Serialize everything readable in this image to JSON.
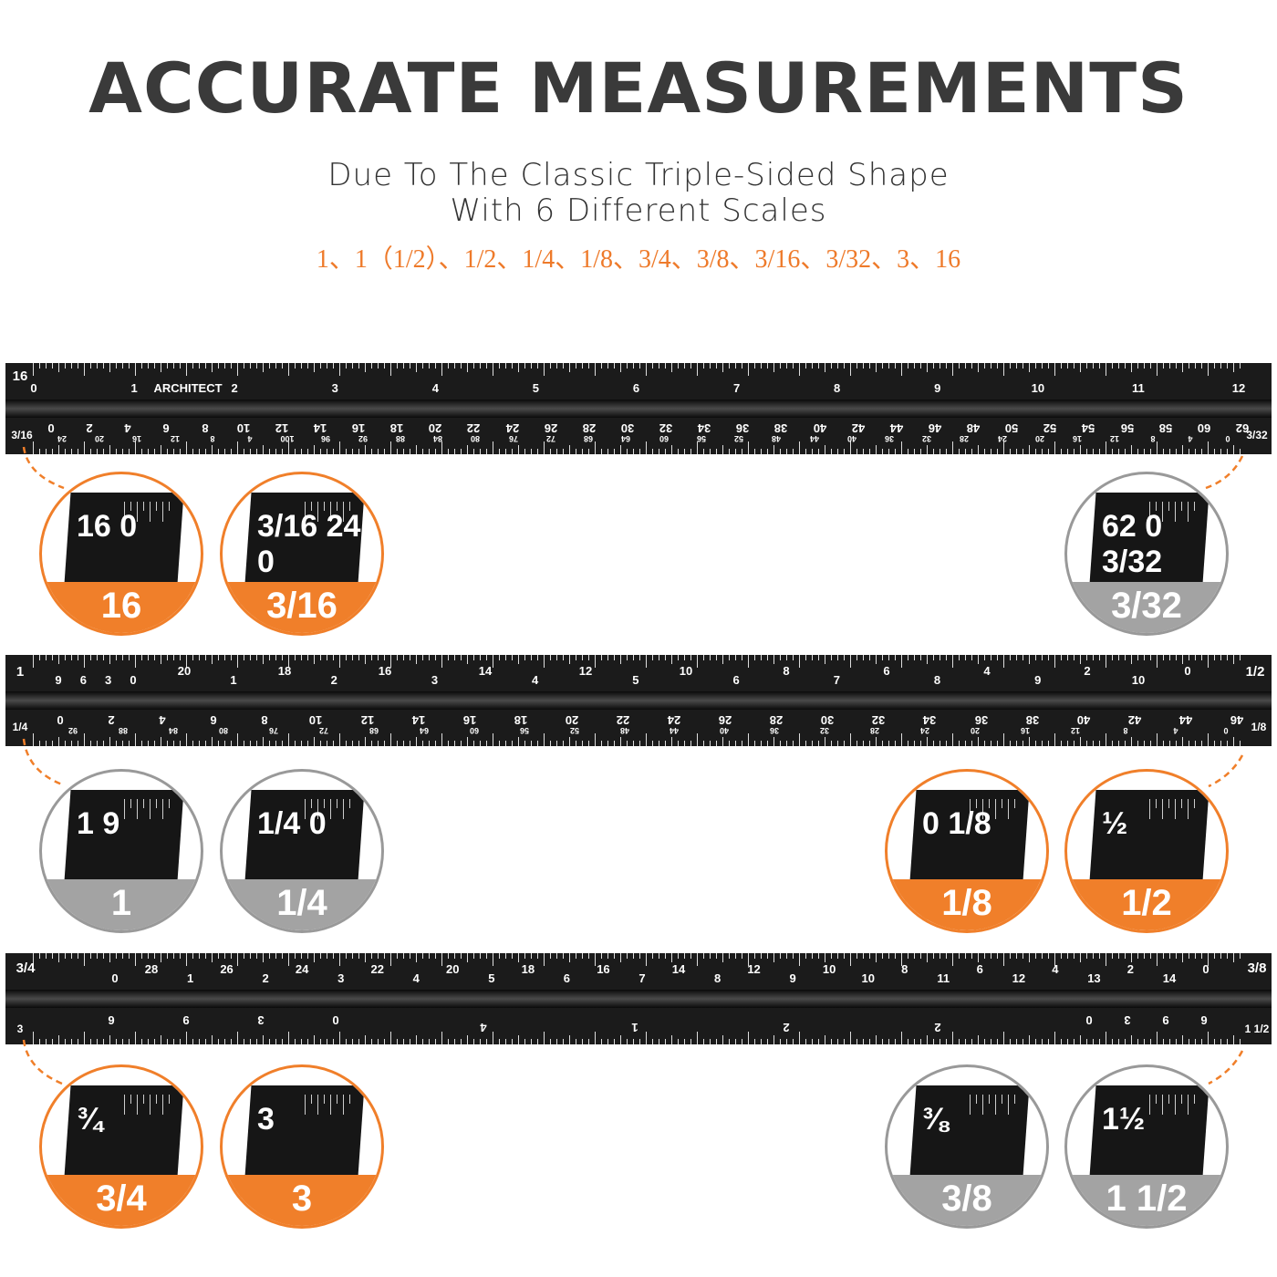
{
  "title": "ACCURATE MEASUREMENTS",
  "subtitle_line1": "Due To The Classic Triple-Sided Shape",
  "subtitle_line2": "With 6 Different Scales",
  "scales_list": "1、1（1/2）、1/2、1/4、1/8、3/4、3/8、3/16、3/32、3、16",
  "colors": {
    "accent": "#f07f2a",
    "gray": "#a3a3a3",
    "ruler": "#1b1b1b"
  },
  "rulers": [
    {
      "top_corner": "16",
      "bottom_left": "3/16",
      "bottom_right": "3/32",
      "brand": "ARCHITECT",
      "top_labels": [
        "0",
        "1",
        "2",
        "3",
        "4",
        "5",
        "6",
        "7",
        "8",
        "9",
        "10",
        "11",
        "12"
      ],
      "bottom_labels": [
        "0",
        "2",
        "4",
        "6",
        "8",
        "10",
        "12",
        "14",
        "16",
        "18",
        "20",
        "22",
        "24",
        "26",
        "28",
        "30",
        "32",
        "34",
        "36",
        "38",
        "40",
        "42",
        "44",
        "46",
        "48",
        "50",
        "52",
        "54",
        "56",
        "58",
        "60",
        "62"
      ],
      "bottom_small_labels": [
        "24",
        "20",
        "16",
        "12",
        "8",
        "4",
        "100",
        "96",
        "92",
        "88",
        "84",
        "80",
        "76",
        "72",
        "68",
        "64",
        "60",
        "56",
        "52",
        "48",
        "44",
        "40",
        "36",
        "32",
        "28",
        "24",
        "20",
        "16",
        "12",
        "8",
        "4",
        "0"
      ]
    },
    {
      "top_corner": "1",
      "top_right": "1/2",
      "bottom_left": "1/4",
      "bottom_right": "1/8",
      "top_left_small": [
        "9",
        "6",
        "3",
        "0"
      ],
      "top_labels_high": [
        "20",
        "18",
        "16",
        "14",
        "12",
        "10",
        "8",
        "6",
        "4",
        "2",
        "0"
      ],
      "top_labels_low": [
        "1",
        "2",
        "3",
        "4",
        "5",
        "6",
        "7",
        "8",
        "9",
        "10"
      ],
      "bottom_labels": [
        "0",
        "2",
        "4",
        "6",
        "8",
        "10",
        "12",
        "14",
        "16",
        "18",
        "20",
        "22",
        "24",
        "26",
        "28",
        "30",
        "32",
        "34",
        "36",
        "38",
        "40",
        "42",
        "44",
        "46"
      ],
      "bottom_small_labels": [
        "92",
        "88",
        "84",
        "80",
        "76",
        "72",
        "68",
        "64",
        "60",
        "56",
        "52",
        "48",
        "44",
        "40",
        "36",
        "32",
        "28",
        "24",
        "20",
        "16",
        "12",
        "8",
        "4",
        "0"
      ]
    },
    {
      "top_corner": "3/4",
      "top_right": "3/8",
      "bottom_left": "3",
      "bottom_right": "1 1/2",
      "top_labels_high": [
        "28",
        "26",
        "24",
        "22",
        "20",
        "18",
        "16",
        "14",
        "12",
        "10",
        "8",
        "6",
        "4",
        "2",
        "0"
      ],
      "top_labels_low": [
        "0",
        "1",
        "2",
        "3",
        "4",
        "5",
        "6",
        "7",
        "8",
        "9",
        "10",
        "11",
        "12",
        "13",
        "14"
      ],
      "bottom_left_labels": [
        "6",
        "9",
        "3",
        "0"
      ],
      "bottom_mid_labels": [
        "4",
        "1",
        "2",
        "2"
      ],
      "bottom_right_labels": [
        "0",
        "3",
        "9",
        "6"
      ]
    }
  ],
  "callouts": [
    {
      "label": "16",
      "glyph": "16 0",
      "color": "orange"
    },
    {
      "label": "3/16",
      "glyph": "3/16 24 0",
      "color": "orange"
    },
    {
      "label": "3/32",
      "glyph": "62 0 3/32",
      "color": "gray"
    },
    {
      "label": "1",
      "glyph": "1 9",
      "color": "gray"
    },
    {
      "label": "1/4",
      "glyph": "1/4 0",
      "color": "gray"
    },
    {
      "label": "1/8",
      "glyph": "0 1/8",
      "color": "orange"
    },
    {
      "label": "1/2",
      "glyph": "½",
      "color": "orange"
    },
    {
      "label": "3/4",
      "glyph": "¾",
      "color": "orange"
    },
    {
      "label": "3",
      "glyph": "3",
      "color": "orange"
    },
    {
      "label": "3/8",
      "glyph": "⅜",
      "color": "gray"
    },
    {
      "label": "1 1/2",
      "glyph": "1½",
      "color": "gray"
    }
  ]
}
